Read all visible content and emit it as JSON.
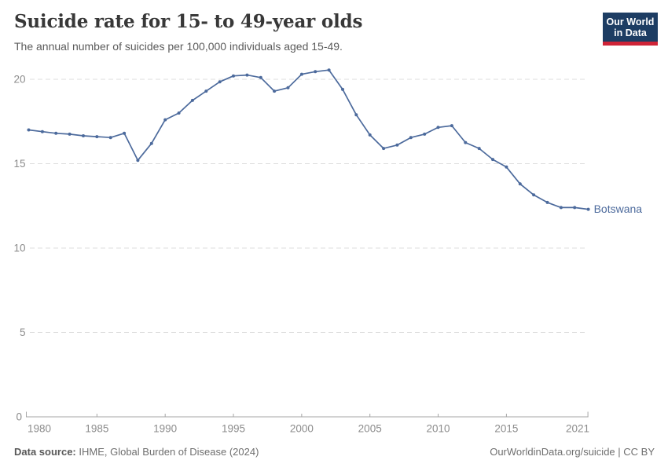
{
  "chart_data": {
    "type": "line",
    "title": "Suicide rate for 15- to 49-year olds",
    "subtitle": "The annual number of suicides per 100,000 individuals aged 15-49.",
    "x": [
      1980,
      1981,
      1982,
      1983,
      1984,
      1985,
      1986,
      1987,
      1988,
      1989,
      1990,
      1991,
      1992,
      1993,
      1994,
      1995,
      1996,
      1997,
      1998,
      1999,
      2000,
      2001,
      2002,
      2003,
      2004,
      2005,
      2006,
      2007,
      2008,
      2009,
      2010,
      2011,
      2012,
      2013,
      2014,
      2015,
      2016,
      2017,
      2018,
      2019,
      2020,
      2021
    ],
    "series": [
      {
        "name": "Botswana",
        "values": [
          17.0,
          16.9,
          16.8,
          16.75,
          16.65,
          16.6,
          16.55,
          16.8,
          15.2,
          16.2,
          17.6,
          18.0,
          18.75,
          19.3,
          19.85,
          20.2,
          20.25,
          20.1,
          19.3,
          19.5,
          20.3,
          20.45,
          20.55,
          19.4,
          17.9,
          16.7,
          15.9,
          16.1,
          16.55,
          16.75,
          17.15,
          17.25,
          16.25,
          15.9,
          15.25,
          14.8,
          13.8,
          13.15,
          12.7,
          12.4,
          12.4,
          12.3
        ]
      }
    ],
    "xlabel": "",
    "ylabel": "",
    "xlim": [
      1980,
      2021
    ],
    "ylim": [
      0,
      20
    ],
    "xticks": [
      1980,
      1985,
      1990,
      1995,
      2000,
      2005,
      2010,
      2015,
      2021
    ],
    "yticks": [
      0,
      5,
      10,
      15,
      20
    ],
    "grid": "horizontal dashed",
    "legend": "entity label at line end",
    "line_color": "#4C6A9C",
    "tick_label_color": "#8c8c8c",
    "gridline_color": "#dedede",
    "axis_color": "#a6a6a6"
  },
  "logo": {
    "line1": "Our World",
    "line2": "in Data",
    "bg_color": "#1d3d63",
    "strip_color": "#cf2437"
  },
  "footer": {
    "source_label": "Data source:",
    "source_value": " IHME, Global Burden of Disease (2024)",
    "credit": "OurWorldinData.org/suicide | CC BY"
  }
}
